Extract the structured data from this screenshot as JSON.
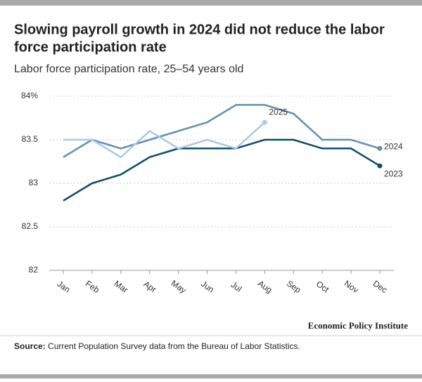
{
  "chart_data": {
    "type": "line",
    "title": [
      "Slowing payroll growth in 2024 did not reduce the labor",
      "force participation rate"
    ],
    "subtitle": "Labor force participation rate, 25–54 years old",
    "categories": [
      "Jan",
      "Feb",
      "Mar",
      "Apr",
      "May",
      "Jun",
      "Jul",
      "Aug",
      "Sep",
      "Oct",
      "Nov",
      "Dec"
    ],
    "series": [
      {
        "name": "2023",
        "color": "#0d4a6e",
        "values": [
          82.8,
          83.0,
          83.1,
          83.3,
          83.4,
          83.4,
          83.4,
          83.5,
          83.5,
          83.4,
          83.4,
          83.2
        ]
      },
      {
        "name": "2024",
        "color": "#5f90b3",
        "values": [
          83.3,
          83.5,
          83.4,
          83.5,
          83.6,
          83.7,
          83.9,
          83.9,
          83.8,
          83.5,
          83.5,
          83.4
        ]
      },
      {
        "name": "2025",
        "color": "#a8cae6",
        "values": [
          83.5,
          83.5,
          83.3,
          83.6,
          83.4,
          83.5,
          83.4,
          83.7,
          null,
          null,
          null,
          null
        ]
      }
    ],
    "ylim": [
      82,
      84
    ],
    "yticks": [
      82,
      82.5,
      83,
      83.5,
      {
        "value": 84,
        "label": "84%"
      }
    ],
    "grid": true,
    "branding": "Economic Policy Institute",
    "source_label": "Source:",
    "source_text": "Current Population Survey data from the Bureau of Labor Statistics."
  }
}
